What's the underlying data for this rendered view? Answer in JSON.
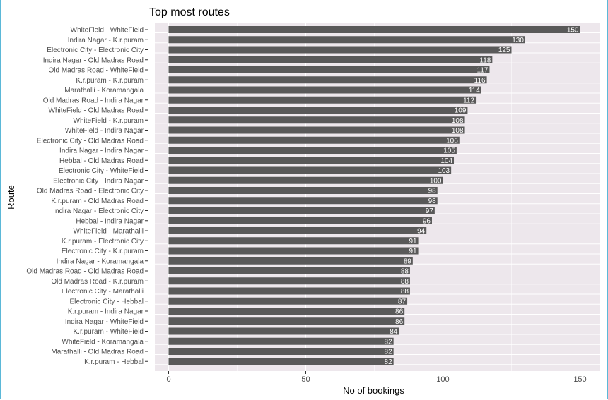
{
  "chart_data": {
    "type": "bar",
    "orientation": "horizontal",
    "title": "Top most routes",
    "xlabel": "No of bookings",
    "ylabel": "Route",
    "xlim": [
      0,
      157.5
    ],
    "xticks": [
      0,
      50,
      100,
      150
    ],
    "grid": true,
    "colors": {
      "panel": "#ede7ec",
      "bar": "#595959",
      "grid": "#ffffff"
    },
    "categories": [
      "WhiteField - WhiteField",
      "Indira Nagar - K.r.puram",
      "Electronic City - Electronic City",
      "Indira Nagar - Old Madras Road",
      "Old Madras Road - WhiteField",
      "K.r.puram - K.r.puram",
      "Marathalli - Koramangala",
      "Old Madras Road - Indira Nagar",
      "WhiteField - Old Madras Road",
      "WhiteField - K.r.puram",
      "WhiteField - Indira Nagar",
      "Electronic City - Old Madras Road",
      "Indira Nagar - Indira Nagar",
      "Hebbal - Old Madras Road",
      "Electronic City - WhiteField",
      "Electronic City - Indira Nagar",
      "Old Madras Road - Electronic City",
      "K.r.puram - Old Madras Road",
      "Indira Nagar - Electronic City",
      "Hebbal - Indira Nagar",
      "WhiteField - Marathalli",
      "K.r.puram - Electronic City",
      "Electronic City - K.r.puram",
      "Indira Nagar - Koramangala",
      "Old Madras Road - Old Madras Road",
      "Old Madras Road - K.r.puram",
      "Electronic City - Marathalli",
      "Electronic City - Hebbal",
      "K.r.puram - Indira Nagar",
      "Indira Nagar - WhiteField",
      "K.r.puram - WhiteField",
      "WhiteField - Koramangala",
      "Marathalli - Old Madras Road",
      "K.r.puram - Hebbal"
    ],
    "values": [
      150,
      130,
      125,
      118,
      117,
      116,
      114,
      112,
      109,
      108,
      108,
      106,
      105,
      104,
      103,
      100,
      98,
      98,
      97,
      96,
      94,
      91,
      91,
      89,
      88,
      88,
      88,
      87,
      86,
      86,
      84,
      82,
      82,
      82
    ]
  }
}
